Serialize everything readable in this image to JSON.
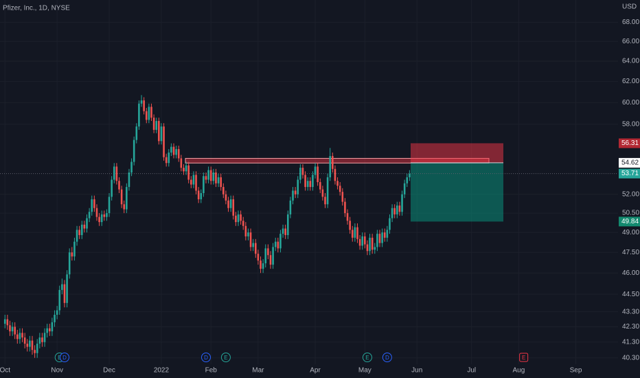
{
  "chart_data": {
    "type": "candlestick",
    "title": "Pfizer, Inc., 1D, NYSE",
    "currency": "USD",
    "log_scale": true,
    "grid": true,
    "up_color": "#26a69a",
    "down_color": "#ef5350",
    "ylim": [
      39.9,
      70.4
    ],
    "yticks": [
      {
        "value": 68,
        "label": "68.00"
      },
      {
        "value": 66,
        "label": "66.00"
      },
      {
        "value": 64,
        "label": "64.00"
      },
      {
        "value": 62,
        "label": "62.00"
      },
      {
        "value": 60,
        "label": "60.00"
      },
      {
        "value": 58,
        "label": "58.00"
      },
      {
        "value": 52,
        "label": "52.00"
      },
      {
        "value": 50.5,
        "label": "50.50"
      },
      {
        "value": 49,
        "label": "49.00"
      },
      {
        "value": 47.5,
        "label": "47.50"
      },
      {
        "value": 46,
        "label": "46.00"
      },
      {
        "value": 44.5,
        "label": "44.50"
      },
      {
        "value": 43.3,
        "label": "43.30"
      },
      {
        "value": 42.3,
        "label": "42.30"
      },
      {
        "value": 41.3,
        "label": "41.30"
      },
      {
        "value": 40.3,
        "label": "40.30"
      }
    ],
    "xlim": [
      -2,
      247
    ],
    "xticks": [
      {
        "value": 0,
        "label": "Oct"
      },
      {
        "value": 21,
        "label": "Nov"
      },
      {
        "value": 42,
        "label": "Dec"
      },
      {
        "value": 63,
        "label": "2022"
      },
      {
        "value": 83,
        "label": "Feb"
      },
      {
        "value": 102,
        "label": "Mar"
      },
      {
        "value": 125,
        "label": "Apr"
      },
      {
        "value": 145,
        "label": "May"
      },
      {
        "value": 166,
        "label": "Jun"
      },
      {
        "value": 188,
        "label": "Jul"
      },
      {
        "value": 207,
        "label": "Aug"
      },
      {
        "value": 230,
        "label": "Sep"
      }
    ],
    "candles": [
      [
        42.5,
        43.1,
        42.2,
        42.8
      ],
      [
        42.8,
        43.1,
        42.1,
        42.4
      ],
      [
        42.4,
        42.7,
        41.7,
        42.0
      ],
      [
        42.0,
        42.6,
        41.7,
        42.3
      ],
      [
        42.3,
        42.6,
        41.5,
        41.8
      ],
      [
        41.8,
        42.1,
        41.2,
        41.5
      ],
      [
        41.5,
        42.2,
        41.2,
        41.9
      ],
      [
        41.9,
        42.2,
        41.3,
        41.6
      ],
      [
        41.6,
        41.9,
        40.9,
        41.2
      ],
      [
        41.2,
        41.5,
        40.7,
        41.0
      ],
      [
        41.0,
        41.7,
        40.7,
        41.4
      ],
      [
        41.4,
        41.7,
        40.5,
        40.8
      ],
      [
        40.8,
        41.1,
        40.3,
        40.6
      ],
      [
        40.6,
        41.5,
        40.3,
        41.2
      ],
      [
        41.2,
        41.9,
        40.9,
        41.6
      ],
      [
        41.6,
        41.9,
        41.0,
        41.3
      ],
      [
        41.3,
        42.2,
        41.0,
        41.9
      ],
      [
        41.9,
        42.5,
        41.6,
        42.2
      ],
      [
        42.2,
        42.5,
        41.7,
        42.0
      ],
      [
        42.0,
        42.9,
        41.7,
        42.6
      ],
      [
        42.6,
        43.4,
        42.3,
        43.1
      ],
      [
        43.1,
        43.7,
        42.8,
        43.4
      ],
      [
        43.4,
        45.1,
        43.1,
        44.8
      ],
      [
        44.8,
        45.6,
        44.5,
        45.2
      ],
      [
        45.2,
        45.5,
        43.6,
        43.9
      ],
      [
        43.9,
        46.2,
        43.6,
        45.9
      ],
      [
        45.9,
        47.8,
        45.6,
        47.5
      ],
      [
        47.5,
        47.9,
        46.9,
        47.2
      ],
      [
        47.2,
        48.6,
        46.9,
        48.3
      ],
      [
        48.3,
        49.5,
        48.0,
        49.2
      ],
      [
        49.2,
        49.5,
        48.5,
        48.8
      ],
      [
        48.8,
        49.9,
        48.5,
        49.6
      ],
      [
        49.6,
        49.9,
        49.0,
        49.3
      ],
      [
        49.3,
        50.4,
        49.0,
        50.1
      ],
      [
        50.1,
        50.9,
        49.8,
        50.6
      ],
      [
        50.6,
        51.9,
        50.3,
        51.6
      ],
      [
        51.6,
        51.9,
        50.6,
        50.9
      ],
      [
        50.9,
        51.2,
        49.9,
        50.2
      ],
      [
        50.2,
        50.5,
        49.5,
        49.8
      ],
      [
        49.8,
        50.7,
        49.5,
        50.4
      ],
      [
        50.4,
        50.7,
        49.9,
        50.2
      ],
      [
        50.2,
        50.8,
        49.9,
        50.5
      ],
      [
        50.5,
        52.1,
        50.2,
        51.8
      ],
      [
        51.8,
        53.5,
        51.5,
        53.2
      ],
      [
        53.2,
        54.6,
        52.9,
        54.3
      ],
      [
        54.3,
        54.6,
        52.8,
        53.1
      ],
      [
        53.1,
        53.4,
        52.1,
        52.4
      ],
      [
        52.4,
        52.7,
        50.9,
        51.2
      ],
      [
        51.2,
        51.5,
        50.5,
        50.8
      ],
      [
        50.8,
        52.9,
        50.5,
        52.6
      ],
      [
        52.6,
        54.1,
        52.3,
        53.8
      ],
      [
        53.8,
        55.0,
        53.5,
        54.7
      ],
      [
        54.7,
        56.9,
        54.4,
        56.6
      ],
      [
        56.6,
        58.1,
        56.3,
        57.8
      ],
      [
        57.8,
        60.2,
        57.5,
        59.9
      ],
      [
        59.9,
        60.7,
        59.6,
        60.2
      ],
      [
        60.2,
        60.5,
        58.9,
        59.2
      ],
      [
        59.2,
        59.5,
        58.1,
        58.4
      ],
      [
        58.4,
        59.9,
        58.1,
        59.6
      ],
      [
        59.6,
        59.9,
        58.3,
        58.6
      ],
      [
        58.6,
        58.9,
        57.2,
        57.5
      ],
      [
        57.5,
        58.6,
        57.2,
        58.3
      ],
      [
        58.3,
        58.6,
        56.2,
        56.5
      ],
      [
        56.5,
        58.1,
        56.2,
        57.8
      ],
      [
        57.8,
        58.1,
        54.8,
        55.1
      ],
      [
        55.1,
        55.4,
        54.3,
        54.6
      ],
      [
        54.6,
        55.8,
        54.3,
        55.5
      ],
      [
        55.5,
        56.3,
        55.2,
        56.0
      ],
      [
        56.0,
        56.3,
        55.0,
        55.3
      ],
      [
        55.3,
        56.1,
        55.0,
        55.8
      ],
      [
        55.8,
        56.1,
        54.7,
        55.0
      ],
      [
        55.0,
        55.3,
        53.9,
        54.2
      ],
      [
        54.2,
        54.5,
        53.6,
        53.9
      ],
      [
        53.9,
        54.7,
        53.6,
        54.4
      ],
      [
        54.4,
        54.7,
        52.9,
        53.2
      ],
      [
        53.2,
        53.5,
        52.5,
        52.8
      ],
      [
        52.8,
        53.9,
        52.5,
        53.6
      ],
      [
        53.6,
        53.9,
        52.0,
        52.3
      ],
      [
        52.3,
        52.6,
        51.3,
        51.6
      ],
      [
        51.6,
        52.4,
        51.3,
        52.1
      ],
      [
        52.1,
        53.8,
        51.8,
        53.5
      ],
      [
        53.5,
        53.8,
        52.9,
        53.2
      ],
      [
        53.2,
        54.3,
        52.9,
        54.0
      ],
      [
        54.0,
        54.3,
        52.8,
        53.1
      ],
      [
        53.1,
        54.1,
        52.8,
        53.8
      ],
      [
        53.8,
        54.1,
        52.6,
        52.9
      ],
      [
        52.9,
        53.7,
        52.6,
        53.4
      ],
      [
        53.4,
        53.7,
        52.3,
        52.6
      ],
      [
        52.6,
        52.9,
        51.7,
        52.0
      ],
      [
        52.0,
        52.3,
        51.2,
        51.5
      ],
      [
        51.5,
        51.8,
        50.6,
        50.9
      ],
      [
        50.9,
        51.9,
        50.6,
        51.6
      ],
      [
        51.6,
        51.9,
        50.0,
        50.3
      ],
      [
        50.3,
        50.6,
        49.5,
        49.8
      ],
      [
        49.8,
        50.7,
        49.5,
        50.4
      ],
      [
        50.4,
        50.7,
        49.6,
        49.9
      ],
      [
        49.9,
        50.2,
        49.2,
        49.5
      ],
      [
        49.5,
        49.8,
        48.4,
        48.7
      ],
      [
        48.7,
        49.3,
        48.4,
        49.0
      ],
      [
        49.0,
        49.3,
        47.6,
        47.9
      ],
      [
        47.9,
        48.5,
        47.6,
        48.2
      ],
      [
        48.2,
        48.5,
        47.1,
        47.4
      ],
      [
        47.4,
        47.7,
        46.6,
        46.9
      ],
      [
        46.9,
        47.2,
        46.0,
        46.3
      ],
      [
        46.3,
        47.0,
        46.0,
        46.7
      ],
      [
        46.7,
        48.1,
        46.4,
        47.8
      ],
      [
        47.8,
        48.1,
        47.0,
        47.3
      ],
      [
        47.3,
        47.6,
        46.3,
        46.6
      ],
      [
        46.6,
        48.2,
        46.3,
        47.9
      ],
      [
        47.9,
        48.6,
        47.6,
        48.3
      ],
      [
        48.3,
        48.6,
        47.5,
        47.8
      ],
      [
        47.8,
        49.2,
        47.5,
        48.9
      ],
      [
        48.9,
        49.6,
        48.6,
        49.3
      ],
      [
        49.3,
        49.6,
        48.5,
        48.8
      ],
      [
        48.8,
        50.7,
        48.5,
        50.4
      ],
      [
        50.4,
        51.8,
        50.1,
        51.5
      ],
      [
        51.5,
        52.6,
        51.2,
        52.3
      ],
      [
        52.3,
        52.6,
        51.7,
        52.0
      ],
      [
        52.0,
        53.5,
        51.7,
        53.2
      ],
      [
        53.2,
        54.5,
        52.9,
        54.2
      ],
      [
        54.2,
        54.5,
        53.3,
        53.6
      ],
      [
        53.6,
        53.9,
        52.3,
        52.6
      ],
      [
        52.6,
        53.4,
        52.3,
        53.1
      ],
      [
        53.1,
        53.4,
        52.3,
        52.6
      ],
      [
        52.6,
        53.9,
        52.3,
        53.6
      ],
      [
        53.6,
        54.6,
        53.3,
        54.3
      ],
      [
        54.3,
        54.6,
        52.7,
        53.0
      ],
      [
        53.0,
        53.3,
        52.1,
        52.4
      ],
      [
        52.4,
        52.7,
        51.5,
        51.8
      ],
      [
        51.8,
        52.1,
        50.9,
        51.2
      ],
      [
        51.2,
        53.7,
        50.9,
        53.4
      ],
      [
        53.4,
        55.9,
        53.1,
        55.2
      ],
      [
        55.2,
        55.5,
        53.8,
        54.1
      ],
      [
        54.1,
        54.4,
        52.8,
        53.1
      ],
      [
        53.1,
        53.4,
        52.4,
        52.7
      ],
      [
        52.7,
        53.0,
        51.9,
        52.2
      ],
      [
        52.2,
        52.5,
        51.1,
        51.4
      ],
      [
        51.4,
        51.7,
        50.2,
        50.5
      ],
      [
        50.5,
        50.8,
        49.6,
        49.9
      ],
      [
        49.9,
        50.2,
        48.9,
        49.2
      ],
      [
        49.2,
        49.5,
        48.3,
        48.6
      ],
      [
        48.6,
        49.7,
        48.3,
        49.4
      ],
      [
        49.4,
        49.7,
        48.2,
        48.5
      ],
      [
        48.5,
        48.8,
        47.7,
        48.0
      ],
      [
        48.0,
        49.0,
        47.7,
        48.7
      ],
      [
        48.7,
        49.0,
        47.8,
        48.1
      ],
      [
        48.1,
        48.4,
        47.3,
        47.6
      ],
      [
        47.6,
        48.9,
        47.3,
        48.6
      ],
      [
        48.6,
        48.9,
        47.4,
        47.7
      ],
      [
        47.7,
        48.2,
        47.4,
        47.9
      ],
      [
        47.9,
        49.2,
        47.6,
        48.9
      ],
      [
        48.9,
        49.2,
        47.9,
        48.2
      ],
      [
        48.2,
        49.3,
        47.9,
        49.0
      ],
      [
        49.0,
        49.3,
        48.3,
        48.6
      ],
      [
        48.6,
        49.5,
        48.3,
        49.2
      ],
      [
        49.2,
        50.4,
        48.9,
        50.1
      ],
      [
        50.1,
        51.2,
        49.8,
        50.9
      ],
      [
        50.9,
        51.2,
        50.1,
        50.4
      ],
      [
        50.4,
        51.4,
        50.1,
        51.1
      ],
      [
        51.1,
        51.4,
        50.3,
        50.6
      ],
      [
        50.6,
        52.3,
        50.3,
        52.0
      ],
      [
        52.0,
        53.2,
        51.7,
        52.9
      ],
      [
        52.9,
        53.7,
        52.6,
        53.4
      ],
      [
        53.4,
        54.0,
        53.1,
        53.7
      ]
    ],
    "zone": [
      54.6,
      55.0
    ],
    "position": {
      "stop": 56.31,
      "entry": 54.62,
      "target": 49.84
    },
    "last_price": 53.71,
    "events": [
      {
        "label": "E",
        "x": 22,
        "color": "#26a69a"
      },
      {
        "label": "D",
        "x": 24,
        "color": "#2962ff"
      },
      {
        "label": "D",
        "x": 81,
        "color": "#2962ff"
      },
      {
        "label": "E",
        "x": 89,
        "color": "#26a69a"
      },
      {
        "label": "E",
        "x": 146,
        "color": "#26a69a"
      },
      {
        "label": "D",
        "x": 154,
        "color": "#2962ff"
      },
      {
        "label": "E",
        "x": 209,
        "color": "#f23645"
      }
    ]
  }
}
